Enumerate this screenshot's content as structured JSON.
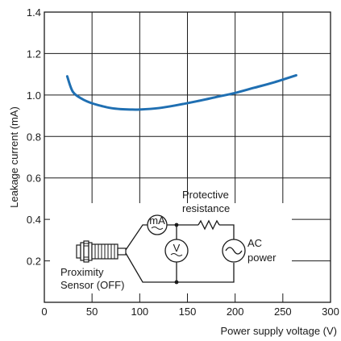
{
  "chart_data": {
    "type": "line",
    "xlabel": "Power supply voltage (V)",
    "ylabel": "Leakage current (mA)",
    "xlim": [
      0,
      300
    ],
    "ylim": [
      0,
      1.4
    ],
    "x_ticks": [
      "0",
      "50",
      "100",
      "150",
      "200",
      "250",
      "300"
    ],
    "y_ticks": [
      "0.2",
      "0.4",
      "0.6",
      "0.8",
      "1.0",
      "1.2",
      "1.4"
    ],
    "grid": true,
    "series": [
      {
        "color": "#1f6fb2",
        "x": [
          24,
          30,
          40,
          50,
          60,
          70,
          80,
          90,
          100,
          120,
          140,
          160,
          180,
          200,
          220,
          240,
          264
        ],
        "y": [
          1.09,
          1.015,
          0.98,
          0.96,
          0.947,
          0.937,
          0.932,
          0.93,
          0.93,
          0.937,
          0.952,
          0.97,
          0.99,
          1.01,
          1.035,
          1.06,
          1.095
        ]
      }
    ]
  },
  "circuit": {
    "sensor_label_line1": "Proximity",
    "sensor_label_line2": "Sensor (OFF)",
    "ammeter_label": "mA",
    "voltmeter_label": "V",
    "resistor_label_line1": "Protective",
    "resistor_label_line2": "resistance",
    "ac_label_line1": "AC",
    "ac_label_line2": "power"
  }
}
